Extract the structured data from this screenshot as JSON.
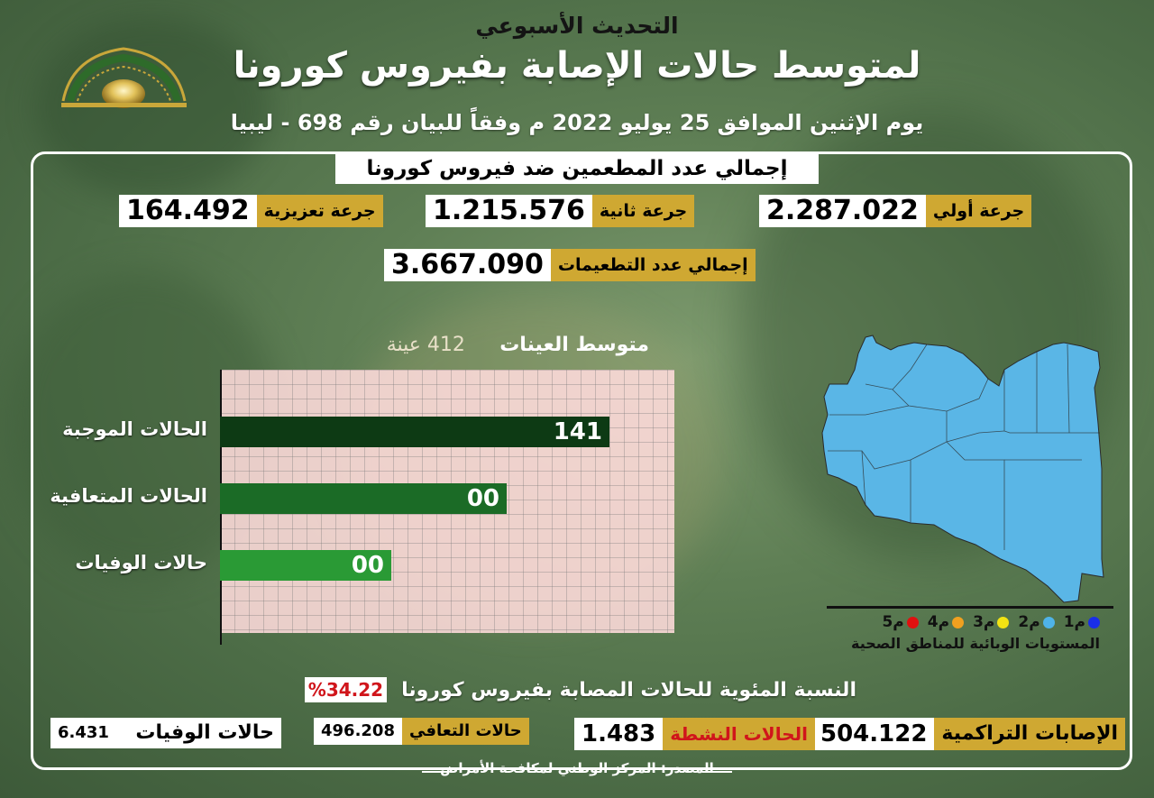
{
  "header": {
    "weekly_update": "التحديث الأسبوعي",
    "main_title": "لمتوسط حالات الإصابة بفيروس كورونا",
    "date_line": "يوم الإثنين الموافق 25 يوليو 2022 م وفقاً للبيان رقم 698 - ليبيا"
  },
  "vaccination": {
    "title": "إجمالي عدد المطعمين ضد فيروس كورونا",
    "first_dose": {
      "label": "جرعة أولي",
      "value": "2.287.022"
    },
    "second_dose": {
      "label": "جرعة ثانية",
      "value": "1.215.576"
    },
    "booster": {
      "label": "جرعة تعزيزية",
      "value": "164.492"
    },
    "total": {
      "label": "إجمالي عدد التطعيمات",
      "value": "3.667.090"
    }
  },
  "chart_data": {
    "type": "bar",
    "title": "متوسط العينات",
    "samples_label": "412 عينة",
    "categories": [
      "الحالات الموجبة",
      "الحالات المتعافية",
      "حالات الوفيات"
    ],
    "values": [
      141,
      0,
      0
    ],
    "value_labels": [
      "141",
      "00",
      "00"
    ],
    "colors": [
      "#0d3a14",
      "#1b6b26",
      "#2a9a35"
    ]
  },
  "map": {
    "legend_levels": [
      {
        "label": "م1",
        "color": "#1a2ee8"
      },
      {
        "label": "م2",
        "color": "#4fb3e8"
      },
      {
        "label": "م3",
        "color": "#f2e313"
      },
      {
        "label": "م4",
        "color": "#f0a020"
      },
      {
        "label": "م5",
        "color": "#e01010"
      }
    ],
    "legend_caption": "المستويات الوبائية للمناطق الصحية",
    "region_fill": "#5ab6e6"
  },
  "positivity": {
    "label": "النسبة المئوية للحالات المصابة بفيروس كورونا",
    "value": "%34.22"
  },
  "stats": {
    "cumulative": {
      "label": "الإصابات التراكمية",
      "value": "504.122"
    },
    "active": {
      "label": "الحالات النشطة",
      "value": "1.483"
    },
    "recovered": {
      "label": "حالات التعافي",
      "value": "496.208"
    },
    "deaths": {
      "label": "حالات الوفيات",
      "value": "6.431"
    }
  },
  "source": "المصدر: المركز الوطني لمكافحة الأمراض"
}
